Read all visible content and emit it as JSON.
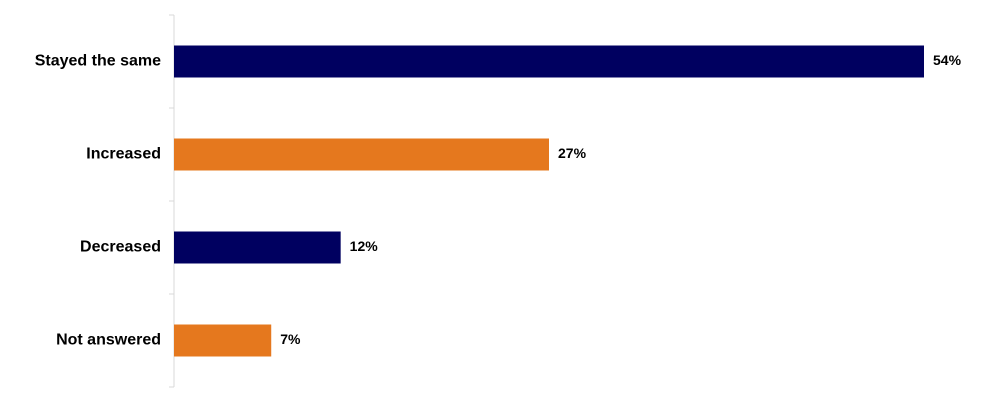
{
  "chart_data": {
    "type": "bar",
    "orientation": "horizontal",
    "categories": [
      "Stayed the same",
      "Increased",
      "Decreased",
      "Not answered"
    ],
    "values": [
      54,
      27,
      12,
      7
    ],
    "value_labels": [
      "54%",
      "27%",
      "12%",
      "7%"
    ],
    "bar_colors": [
      "#000060",
      "#E5781E",
      "#000060",
      "#E5781E"
    ],
    "axis_color": "#D9D9D9",
    "xlim": [
      0,
      54
    ],
    "grid": false,
    "title": "",
    "xlabel": "",
    "ylabel": ""
  }
}
